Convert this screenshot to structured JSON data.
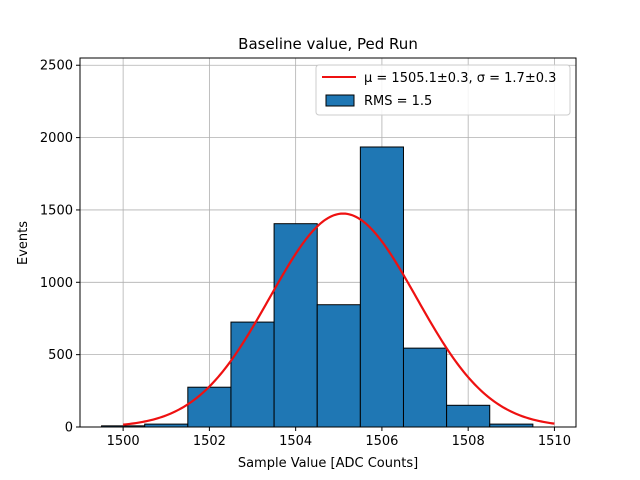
{
  "chart_data": {
    "type": "bar",
    "title": "Baseline value, Ped Run",
    "xlabel": "Sample Value [ADC Counts]",
    "ylabel": "Events",
    "xlim": [
      1499,
      1510.5
    ],
    "ylim": [
      0,
      2550
    ],
    "xticks": [
      1500,
      1502,
      1504,
      1506,
      1508,
      1510
    ],
    "yticks": [
      0,
      500,
      1000,
      1500,
      2000,
      2500
    ],
    "grid": true,
    "bar_color": "#1f77b4",
    "fit_color": "#ee1111",
    "bin_edges": [
      1499.5,
      1500.5,
      1501.5,
      1502.5,
      1503.5,
      1504.5,
      1505.5,
      1506.5,
      1507.5,
      1508.5,
      1509.5
    ],
    "values": [
      8,
      20,
      275,
      725,
      1405,
      845,
      1935,
      545,
      150,
      20
    ],
    "fit": {
      "mu": 1505.1,
      "sigma": 1.7,
      "amplitude": 1475,
      "x_range": [
        1500,
        1510
      ]
    },
    "legend": {
      "position": "top-right",
      "entries": [
        {
          "kind": "line",
          "label": "μ = 1505.1±0.3, σ = 1.7±0.3"
        },
        {
          "kind": "patch",
          "label": "RMS = 1.5"
        }
      ]
    }
  }
}
